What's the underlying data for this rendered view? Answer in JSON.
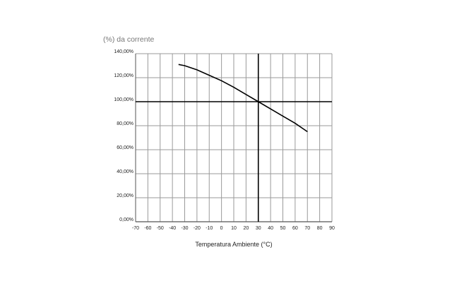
{
  "chart_data": {
    "type": "line",
    "title": "(%) da corrente",
    "xlabel": "Temperatura Ambiente (°C)",
    "ylabel": "",
    "xlim": [
      -70,
      90
    ],
    "ylim": [
      0,
      140
    ],
    "xticks": [
      -70,
      -60,
      -50,
      -40,
      -30,
      -20,
      -10,
      0,
      10,
      20,
      30,
      40,
      50,
      60,
      70,
      80,
      90
    ],
    "yticks": [
      0,
      20,
      40,
      60,
      80,
      100,
      120,
      140
    ],
    "ytick_labels": [
      "0,00%",
      "20,00%",
      "40,00%",
      "60,00%",
      "80,00%",
      "100,00%",
      "120,00%",
      "140,00%"
    ],
    "grid": true,
    "reference_lines": {
      "x": 30,
      "y": 100
    },
    "series": [
      {
        "x": [
          -35,
          -30,
          -20,
          -10,
          0,
          10,
          20,
          30,
          40,
          50,
          60,
          70
        ],
        "y": [
          131,
          130,
          126.5,
          122,
          117.5,
          112,
          106,
          100,
          94,
          88,
          82,
          75
        ]
      }
    ],
    "colors": {
      "line": "#000000",
      "grid": "#9a9a9a",
      "title": "#777777"
    }
  }
}
